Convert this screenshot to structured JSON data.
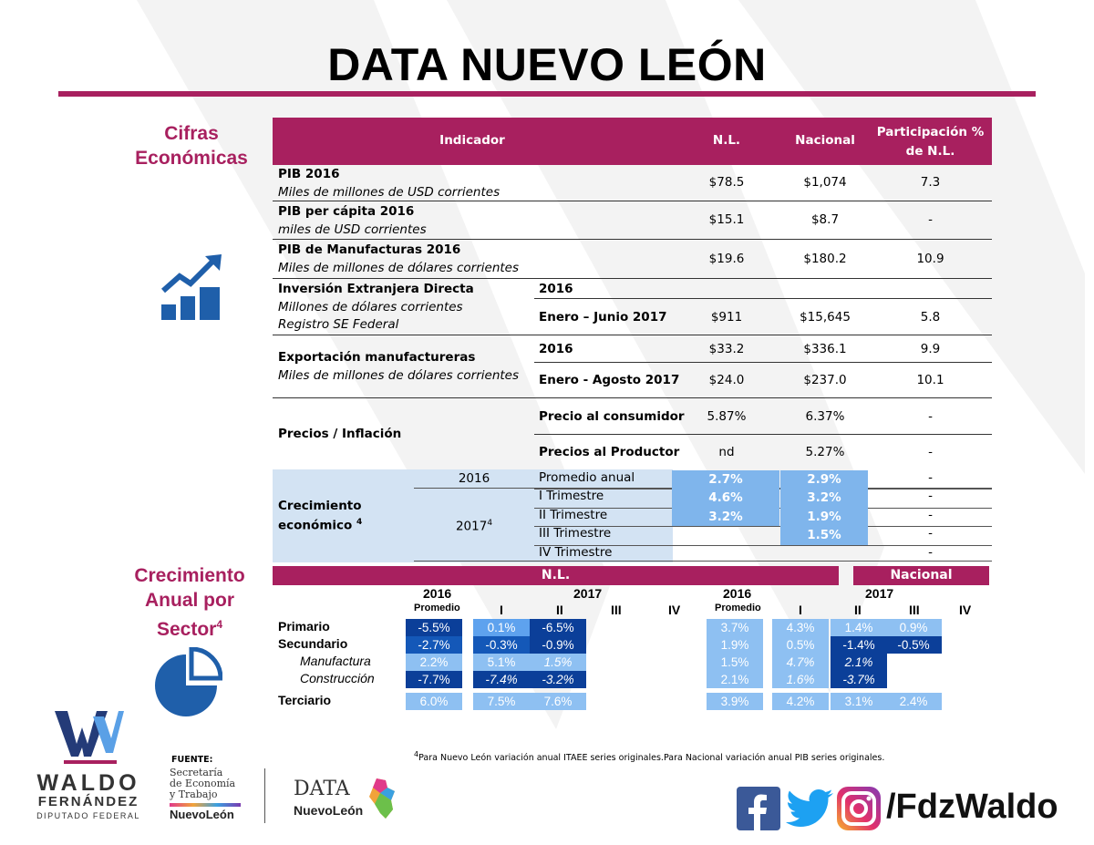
{
  "title": "DATA NUEVO LEÓN",
  "sections": {
    "cifras": "Cifras Económicas",
    "crecimiento": "Crecimiento Anual por Sector",
    "crecimiento_sup": "4"
  },
  "main_table": {
    "headers": {
      "indicador": "Indicador",
      "nl": "N.L.",
      "nacional": "Nacional",
      "participacion": "Participación % de N.L."
    },
    "pib": {
      "label": "PIB 2016",
      "sub": "Miles de millones de USD corrientes",
      "nl": "$78.5",
      "nacional": "$1,074",
      "part": "7.3"
    },
    "pib_pc": {
      "label": "PIB per cápita  2016",
      "sub": "miles de USD corrientes",
      "nl": "$15.1",
      "nacional": "$8.7",
      "part": "-"
    },
    "pib_manuf": {
      "label": "PIB de Manufacturas 2016",
      "sub": "Miles de millones de dólares corrientes",
      "nl": "$19.6",
      "nacional": "$180.2",
      "part": "10.9"
    },
    "ied": {
      "label": "Inversión Extranjera Directa",
      "sub1": "Millones de dólares corrientes",
      "sub2": "Registro SE Federal",
      "p1": "2016",
      "p2": "Enero – Junio 2017",
      "nl": "$911",
      "nacional": "$15,645",
      "part": "5.8"
    },
    "export": {
      "label": "Exportación manufactureras",
      "sub": "Miles de millones de dólares corrientes",
      "p1": "2016",
      "nl1": "$33.2",
      "nac1": "$336.1",
      "part1": "9.9",
      "p2": "Enero - Agosto 2017",
      "nl2": "$24.0",
      "nac2": "$237.0",
      "part2": "10.1"
    },
    "precios": {
      "label": "Precios / Inflación",
      "p1": "Precio al consumidor",
      "nl1": "5.87%",
      "nac1": "6.37%",
      "part1": "-",
      "p2": "Precios al Productor",
      "nl2": "nd",
      "nac2": "5.27%",
      "part2": "-"
    },
    "crec": {
      "label1": "Crecimiento",
      "label2": "económico",
      "sup": "4",
      "y2016": "2016",
      "y2017": "2017",
      "y2017_sup": "4",
      "rows": [
        {
          "period": "Promedio anual",
          "nl": "2.7%",
          "nac": "2.9%",
          "part": "-"
        },
        {
          "period": "I Trimestre",
          "nl": "4.6%",
          "nac": "3.2%",
          "part": "-"
        },
        {
          "period": "II Trimestre",
          "nl": "3.2%",
          "nac": "1.9%",
          "part": "-"
        },
        {
          "period": "III Trimestre",
          "nl": "",
          "nac": "1.5%",
          "part": "-"
        },
        {
          "period": "IV Trimestre",
          "nl": "",
          "nac": "",
          "part": "-"
        }
      ]
    }
  },
  "sector_table": {
    "nl_label": "N.L.",
    "nac_label": "Nacional",
    "y2016": "2016",
    "y2017": "2017",
    "promedio": "Promedio",
    "q1": "I",
    "q2": "II",
    "q3": "III",
    "q4": "IV",
    "rows": [
      {
        "name": "Primario",
        "nl": [
          "-5.5%",
          "0.1%",
          "-6.5%"
        ],
        "nac": [
          "3.7%",
          "4.3%",
          "1.4%",
          "0.9%"
        ]
      },
      {
        "name": "Secundario",
        "nl": [
          "-2.7%",
          "-0.3%",
          "-0.9%"
        ],
        "nac": [
          "1.9%",
          "0.5%",
          "-1.4%",
          "-0.5%"
        ]
      },
      {
        "name": "Manufactura",
        "nl": [
          "2.2%",
          "5.1%",
          "1.5%"
        ],
        "nac": [
          "1.5%",
          "4.7%",
          "2.1%"
        ]
      },
      {
        "name": "Construcción",
        "nl": [
          "-7.7%",
          "-7.4%",
          "-3.2%"
        ],
        "nac": [
          "2.1%",
          "1.6%",
          "-3.7%"
        ]
      },
      {
        "name": "Terciario",
        "nl": [
          "6.0%",
          "7.5%",
          "7.6%"
        ],
        "nac": [
          "3.9%",
          "4.2%",
          "3.1%",
          "2.4%"
        ]
      }
    ]
  },
  "footnote": {
    "sup": "4",
    "text": "Para Nuevo León variación anual ITAEE series originales.Para Nacional variación anual PIB series originales."
  },
  "footer": {
    "fuente": "FUENTE:",
    "se_line1": "Secretaría",
    "se_line2": "de Economía",
    "se_line3": "y Trabajo",
    "se_nl": "NuevoLeón",
    "data_logo": "DATA",
    "data_nl": "NuevoLeón",
    "waldo1": "WALDO",
    "waldo2": "FERNÁNDEZ",
    "waldo3": "DIPUTADO FEDERAL",
    "handle": "/FdzWaldo"
  },
  "colors": {
    "accent": "#a8205f",
    "blue_dark": "#0b3f99",
    "blue_mid": "#1458b8",
    "blue_light": "#8ec0f2",
    "shade": "#d3e3f3",
    "icon_blue": "#1f5faa"
  }
}
